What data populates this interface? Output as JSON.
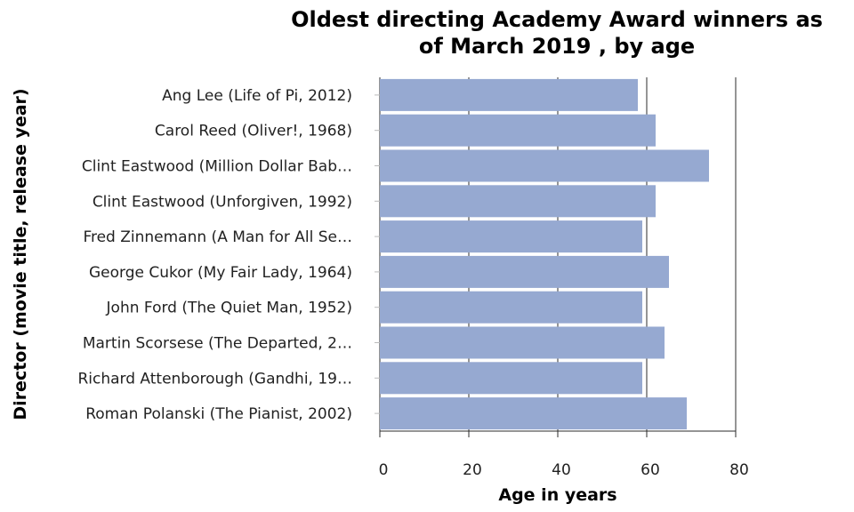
{
  "chart_data": {
    "type": "bar",
    "orientation": "horizontal",
    "title_lines": [
      "Oldest directing Academy Award winners as",
      "of March 2019 , by age"
    ],
    "xlabel": "Age in years",
    "ylabel": "Director (movie title, release year)",
    "categories": [
      "Ang Lee (Life of Pi, 2012)",
      "Carol Reed (Oliver!, 1968)",
      "Clint Eastwood (Million Dollar Bab…",
      "Clint Eastwood (Unforgiven, 1992)",
      "Fred Zinnemann (A Man for All Se…",
      "George Cukor (My Fair Lady, 1964)",
      "John Ford (The Quiet Man, 1952)",
      "Martin Scorsese (The Departed, 2…",
      "Richard Attenborough (Gandhi, 19…",
      "Roman Polanski (The Pianist, 2002)"
    ],
    "values": [
      58,
      62,
      74,
      62,
      59,
      65,
      59,
      64,
      59,
      69
    ],
    "xlim": [
      0,
      80
    ],
    "xticks": [
      0,
      20,
      40,
      60,
      80
    ],
    "grid": "vertical",
    "bar_color": "#96a9d1"
  }
}
